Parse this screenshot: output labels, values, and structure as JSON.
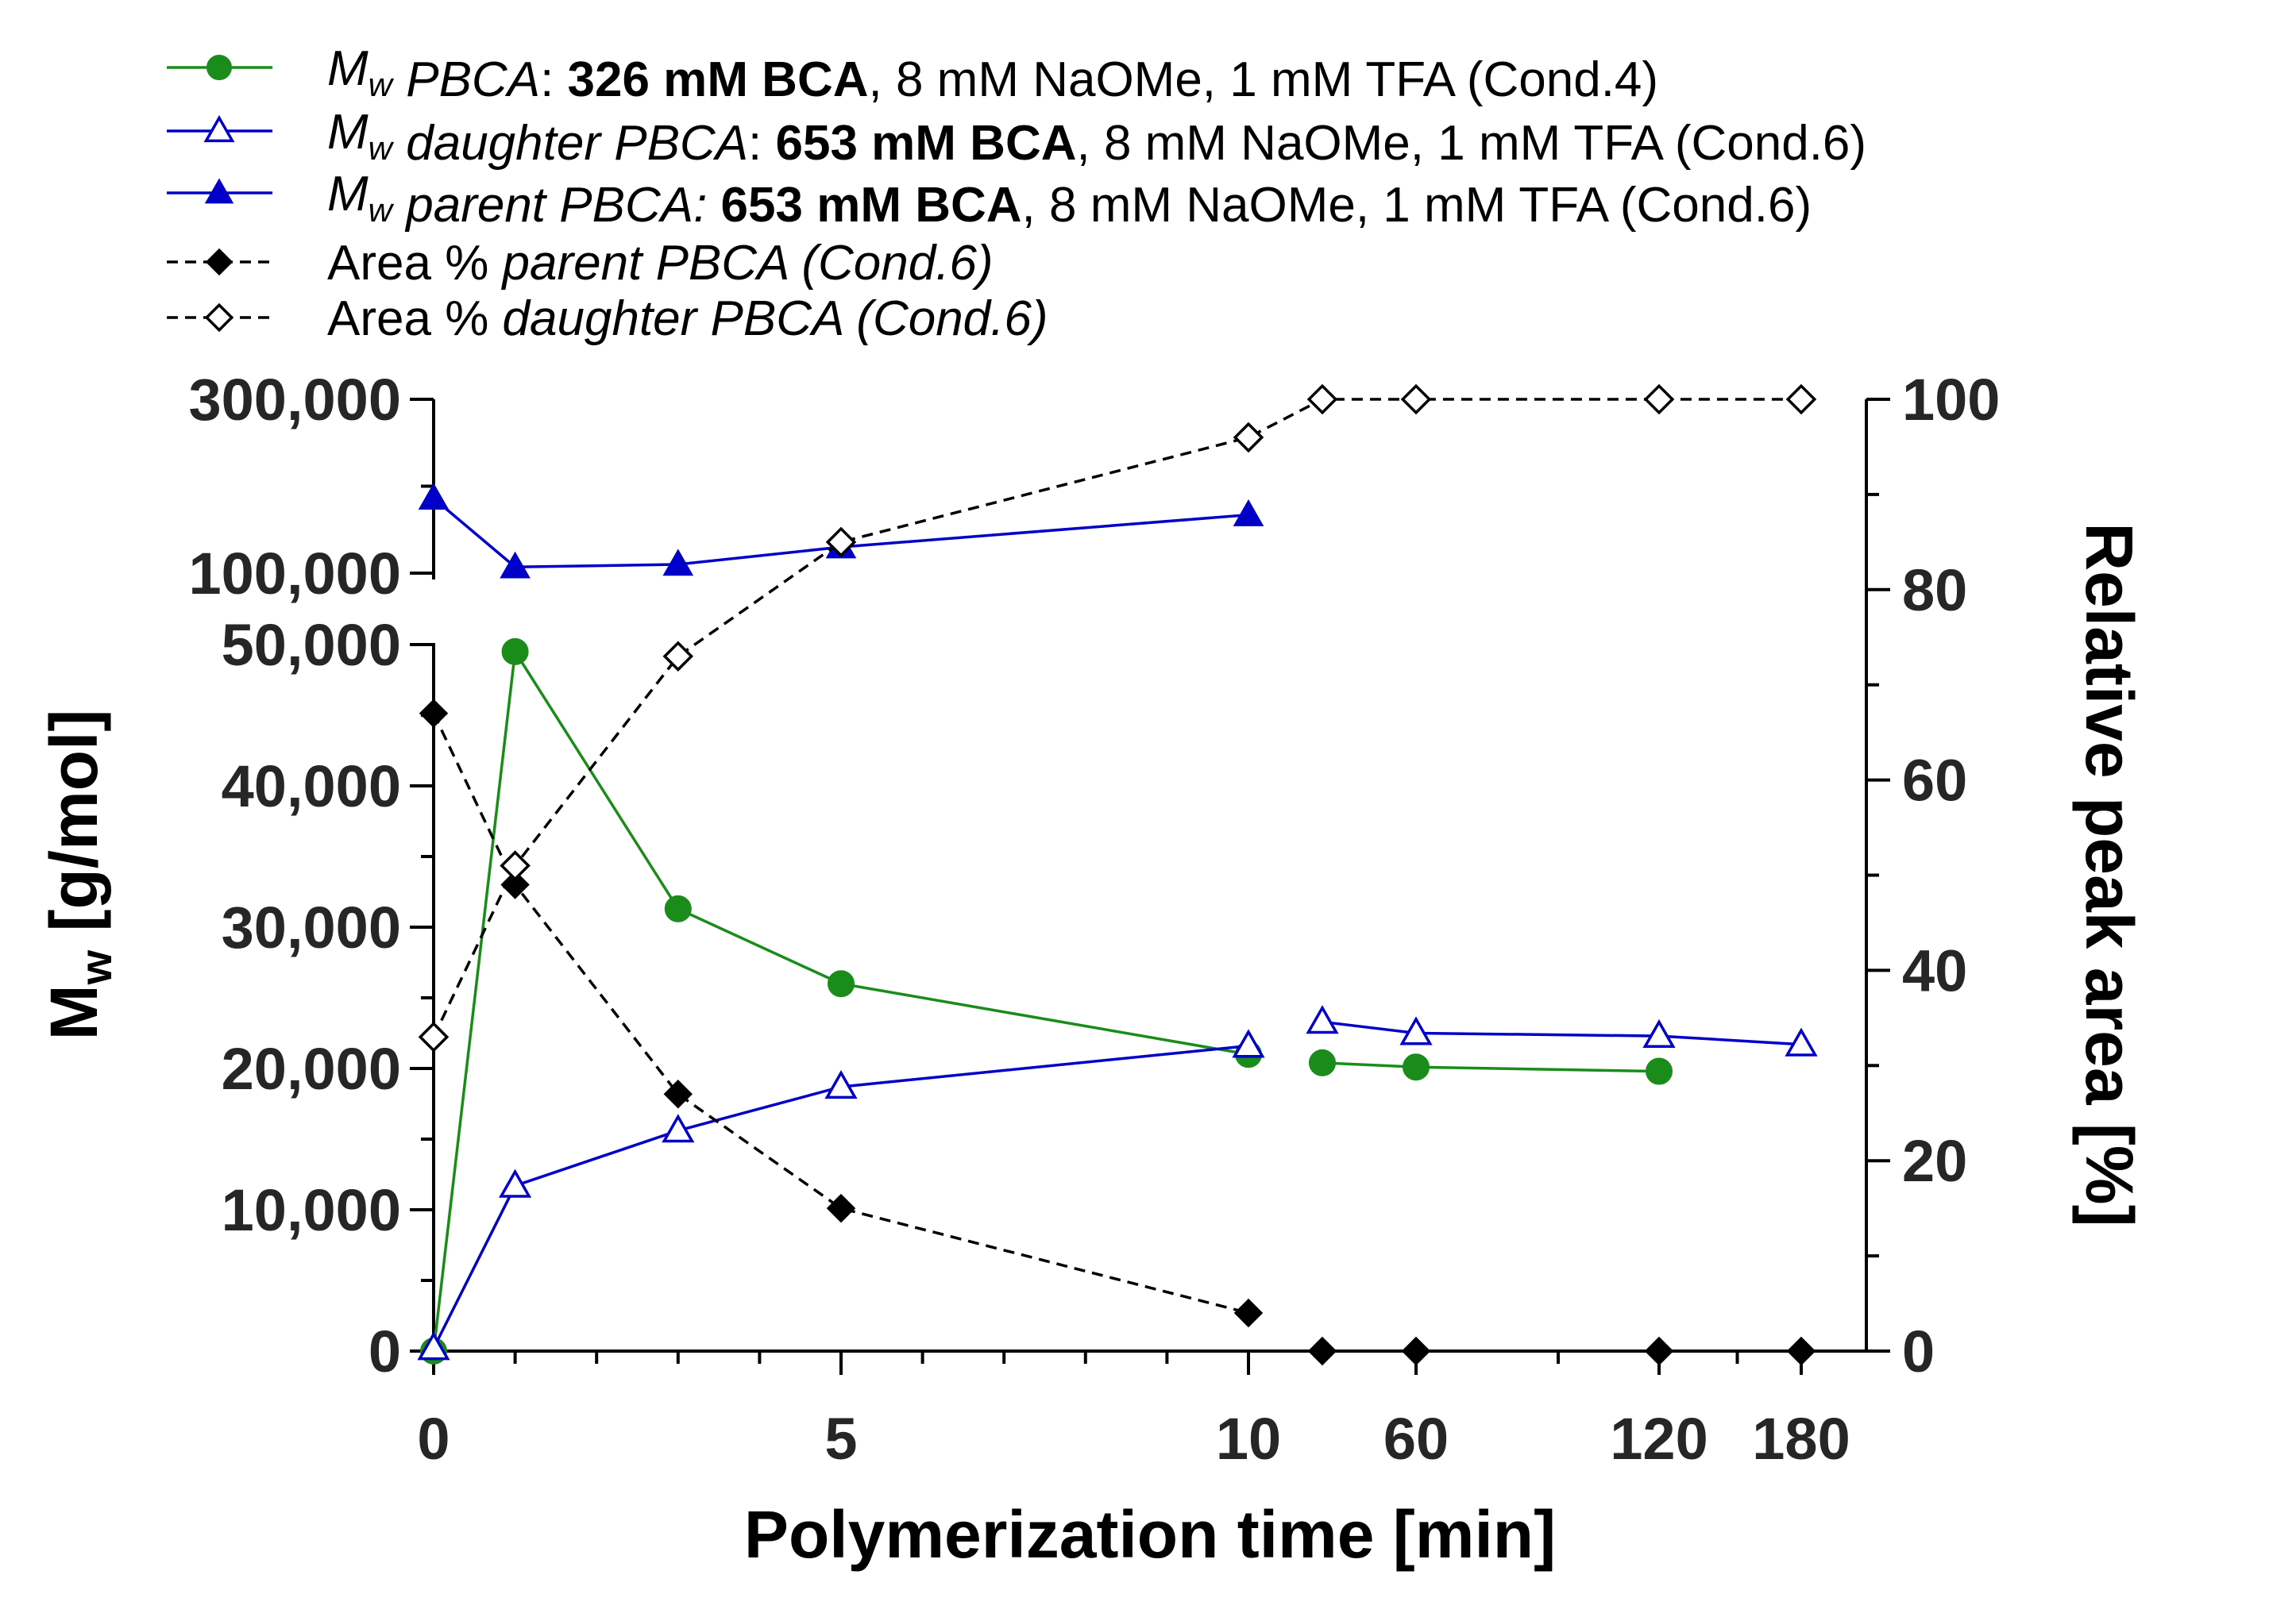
{
  "chart_data": {
    "type": "line",
    "xlabel": "Polymerization time [min]",
    "ylabel_left": {
      "main": "M",
      "sub": "w",
      "unit": " [g/mol]"
    },
    "ylabel_right": "Relative peak area [%]",
    "x_ticks": [
      "0",
      "5",
      "10",
      "60",
      "120",
      "180"
    ],
    "x_ticks_numeric": [
      0,
      5,
      10,
      60,
      120,
      180
    ],
    "y_left_ticks_lower": [
      "0",
      "10,000",
      "20,000",
      "30,000",
      "40,000",
      "50,000"
    ],
    "y_left_ticks_upper": [
      "100,000",
      "300,000"
    ],
    "y_left_ranges": {
      "lower": [
        0,
        50000
      ],
      "upper": [
        100000,
        300000
      ]
    },
    "y_right_ticks": [
      "0",
      "20",
      "40",
      "60",
      "80",
      "100"
    ],
    "y_right_range": [
      0,
      100
    ],
    "x_segments": {
      "linear": [
        0,
        10
      ],
      "log": [
        60,
        180
      ]
    },
    "series": [
      {
        "name": "Mw PBCA cond4",
        "legend": [
          {
            "text": "M",
            "italic": true
          },
          {
            "text": "w",
            "italic": true,
            "sub": true
          },
          {
            "text": " PBCA",
            "italic": true
          },
          {
            "text": ": "
          },
          {
            "text": "326 mM BCA",
            "bold": true
          },
          {
            "text": ", 8 mM NaOMe, 1 mM TFA (Cond.4)"
          }
        ],
        "color": "#1a8c1a",
        "marker": "circle",
        "filled": true,
        "dashed": false,
        "axis": "left",
        "segments": [
          [
            {
              "x": 0,
              "y": 0
            },
            {
              "x": 1,
              "y": 49500
            },
            {
              "x": 3,
              "y": 31300
            },
            {
              "x": 5,
              "y": 26000
            },
            {
              "x": 10,
              "y": 21000
            }
          ],
          [
            {
              "x": 30,
              "y": 20400
            },
            {
              "x": 60,
              "y": 20100
            },
            {
              "x": 120,
              "y": 19800
            }
          ]
        ]
      },
      {
        "name": "Mw daughter PBCA cond6",
        "legend": [
          {
            "text": "M",
            "italic": true
          },
          {
            "text": "w",
            "italic": true,
            "sub": true
          },
          {
            "text": " daughter PBCA",
            "italic": true
          },
          {
            "text": ": "
          },
          {
            "text": "653 mM BCA",
            "bold": true
          },
          {
            "text": ", 8 mM NaOMe, 1 mM TFA (Cond.6)"
          }
        ],
        "color": "#0000c8",
        "marker": "triangle",
        "filled": false,
        "dashed": false,
        "axis": "left",
        "segments": [
          [
            {
              "x": 0,
              "y": 200
            },
            {
              "x": 1,
              "y": 11700
            },
            {
              "x": 3,
              "y": 15600
            },
            {
              "x": 5,
              "y": 18700
            },
            {
              "x": 10,
              "y": 21600
            }
          ],
          [
            {
              "x": 30,
              "y": 23300
            },
            {
              "x": 60,
              "y": 22500
            },
            {
              "x": 120,
              "y": 22300
            },
            {
              "x": 180,
              "y": 21700
            }
          ]
        ]
      },
      {
        "name": "Mw parent PBCA cond6",
        "legend": [
          {
            "text": "M",
            "italic": true
          },
          {
            "text": "w",
            "italic": true,
            "sub": true
          },
          {
            "text": " parent PBCA:",
            "italic": true
          },
          {
            "text": " "
          },
          {
            "text": "653 mM BCA",
            "bold": true
          },
          {
            "text": ", 8 mM NaOMe, 1 mM TFA (Cond.6)"
          }
        ],
        "color": "#0000c8",
        "marker": "triangle",
        "filled": true,
        "dashed": false,
        "axis": "left",
        "segments": [
          [
            {
              "x": 0,
              "y": 186000
            },
            {
              "x": 1,
              "y": 107000
            },
            {
              "x": 3,
              "y": 110000
            },
            {
              "x": 5,
              "y": 130000
            },
            {
              "x": 10,
              "y": 167000
            }
          ]
        ]
      },
      {
        "name": "Area % parent PBCA",
        "legend": [
          {
            "text": "Area % "
          },
          {
            "text": "parent PBCA (Cond.6)",
            "italic": true
          }
        ],
        "color": "#000000",
        "marker": "diamond",
        "filled": true,
        "dashed": true,
        "axis": "right",
        "segments": [
          [
            {
              "x": 0,
              "y": 67
            },
            {
              "x": 1,
              "y": 49
            },
            {
              "x": 3,
              "y": 27
            },
            {
              "x": 5,
              "y": 15
            },
            {
              "x": 10,
              "y": 4
            }
          ],
          [
            {
              "x": 30,
              "y": 0
            },
            {
              "x": 60,
              "y": 0
            },
            {
              "x": 120,
              "y": 0
            },
            {
              "x": 180,
              "y": 0
            }
          ]
        ]
      },
      {
        "name": "Area % daughter PBCA",
        "legend": [
          {
            "text": "Area % "
          },
          {
            "text": "daughter PBCA (Cond.6)",
            "italic": true
          }
        ],
        "color": "#000000",
        "marker": "diamond",
        "filled": false,
        "dashed": true,
        "axis": "right",
        "segments": [
          [
            {
              "x": 0,
              "y": 33
            },
            {
              "x": 1,
              "y": 51
            },
            {
              "x": 3,
              "y": 73
            },
            {
              "x": 5,
              "y": 85
            },
            {
              "x": 10,
              "y": 96
            },
            {
              "x": 30,
              "y": 100
            },
            {
              "x": 60,
              "y": 100
            },
            {
              "x": 120,
              "y": 100
            },
            {
              "x": 180,
              "y": 100
            }
          ]
        ]
      }
    ]
  }
}
